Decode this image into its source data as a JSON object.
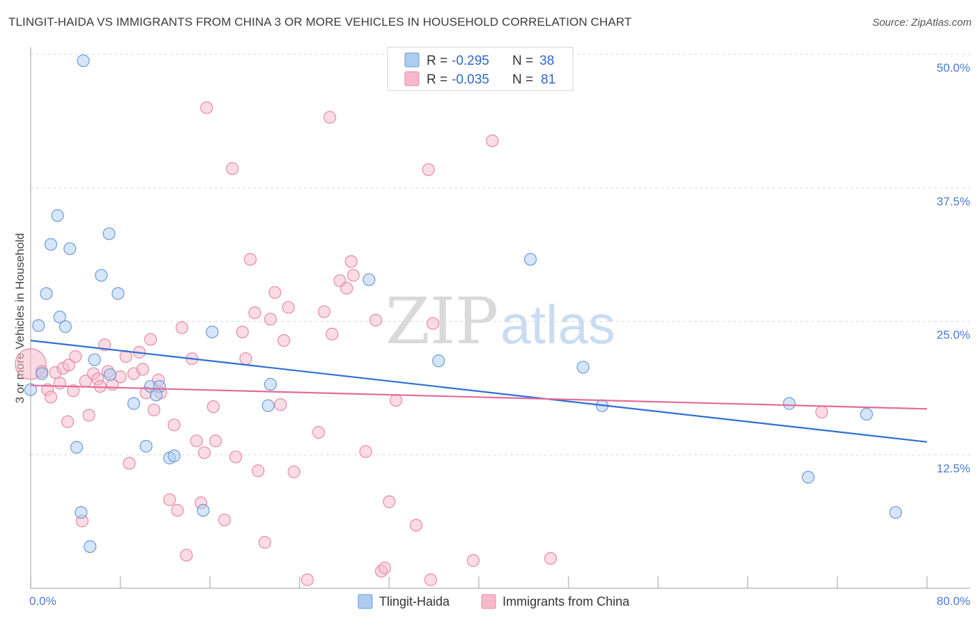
{
  "header": {
    "title": "TLINGIT-HAIDA VS IMMIGRANTS FROM CHINA 3 OR MORE VEHICLES IN HOUSEHOLD CORRELATION CHART",
    "source": "Source: ZipAtlas.com"
  },
  "watermark": {
    "part1": "ZIP",
    "part2": "atlas"
  },
  "legend": {
    "rows": [
      {
        "r_label": "R =",
        "r_value": "-0.295",
        "n_label": "N =",
        "n_value": "38",
        "color": "#aecbf0"
      },
      {
        "r_label": "R =",
        "r_value": "-0.035",
        "n_label": "N =",
        "n_value": "81",
        "color": "#f6b9cc"
      }
    ]
  },
  "colors": {
    "blue_fill": "#aecbf0",
    "blue_stroke": "#6a9bd8",
    "blue_line": "#2f6fd0",
    "pink_fill": "#f6b9cc",
    "pink_stroke": "#e889a8",
    "pink_line": "#e36b97",
    "grid": "#d8d8d8",
    "tick_text": "#4a7bd0"
  },
  "chart_data": {
    "type": "scatter",
    "title": "TLINGIT-HAIDA VS IMMIGRANTS FROM CHINA 3 OR MORE VEHICLES IN HOUSEHOLD CORRELATION CHART",
    "xlabel": "",
    "ylabel": "3 or more Vehicles in Household",
    "xlim": [
      0,
      80
    ],
    "ylim": [
      0,
      50
    ],
    "x_tick_labels": [
      "0.0%",
      "80.0%"
    ],
    "y_ticks": [
      12.5,
      25.0,
      37.5,
      50.0
    ],
    "y_tick_labels": [
      "12.5%",
      "25.0%",
      "37.5%",
      "50.0%"
    ],
    "grid": true,
    "series": [
      {
        "name": "Tlingit-Haida",
        "color": "#aecbf0",
        "trend": {
          "x": [
            0,
            80
          ],
          "y": [
            23.2,
            13.7
          ]
        },
        "points": [
          [
            4.7,
            49.4
          ],
          [
            2.4,
            34.9
          ],
          [
            7.0,
            33.2
          ],
          [
            1.8,
            32.2
          ],
          [
            3.5,
            31.8
          ],
          [
            6.3,
            29.3
          ],
          [
            1.4,
            27.6
          ],
          [
            7.8,
            27.6
          ],
          [
            30.2,
            28.9
          ],
          [
            2.6,
            25.4
          ],
          [
            0.7,
            24.6
          ],
          [
            3.1,
            24.5
          ],
          [
            16.2,
            24.0
          ],
          [
            5.7,
            21.4
          ],
          [
            7.1,
            20.0
          ],
          [
            1.0,
            20.1
          ],
          [
            0.0,
            18.6
          ],
          [
            10.7,
            18.9
          ],
          [
            11.5,
            18.9
          ],
          [
            11.2,
            18.1
          ],
          [
            21.4,
            19.1
          ],
          [
            9.2,
            17.3
          ],
          [
            21.2,
            17.1
          ],
          [
            36.4,
            21.3
          ],
          [
            44.6,
            30.8
          ],
          [
            49.3,
            20.7
          ],
          [
            51.0,
            17.1
          ],
          [
            67.7,
            17.3
          ],
          [
            74.6,
            16.3
          ],
          [
            4.1,
            13.2
          ],
          [
            10.3,
            13.3
          ],
          [
            12.4,
            12.2
          ],
          [
            12.8,
            12.4
          ],
          [
            69.4,
            10.4
          ],
          [
            4.5,
            7.1
          ],
          [
            15.4,
            7.3
          ],
          [
            5.3,
            3.9
          ],
          [
            77.2,
            7.1
          ]
        ]
      },
      {
        "name": "Immigrants from China",
        "color": "#f6b9cc",
        "trend": {
          "x": [
            0,
            80
          ],
          "y": [
            19.0,
            16.8
          ]
        },
        "points": [
          [
            0.0,
            21.0
          ],
          [
            1.0,
            20.3
          ],
          [
            1.5,
            18.6
          ],
          [
            1.8,
            17.9
          ],
          [
            2.2,
            20.2
          ],
          [
            2.6,
            19.2
          ],
          [
            2.9,
            20.6
          ],
          [
            3.3,
            15.6
          ],
          [
            3.4,
            20.9
          ],
          [
            3.8,
            18.5
          ],
          [
            4.0,
            21.7
          ],
          [
            4.6,
            6.3
          ],
          [
            4.9,
            19.4
          ],
          [
            5.2,
            16.2
          ],
          [
            5.6,
            20.1
          ],
          [
            6.0,
            19.6
          ],
          [
            6.2,
            18.9
          ],
          [
            6.6,
            22.8
          ],
          [
            6.9,
            20.3
          ],
          [
            7.3,
            19.1
          ],
          [
            8.0,
            19.8
          ],
          [
            8.5,
            21.7
          ],
          [
            8.8,
            11.7
          ],
          [
            9.2,
            20.1
          ],
          [
            9.7,
            22.1
          ],
          [
            10.0,
            20.5
          ],
          [
            10.3,
            18.3
          ],
          [
            10.7,
            23.3
          ],
          [
            11.0,
            16.7
          ],
          [
            11.4,
            19.5
          ],
          [
            11.6,
            18.3
          ],
          [
            12.4,
            8.3
          ],
          [
            12.8,
            15.3
          ],
          [
            13.1,
            7.3
          ],
          [
            13.5,
            24.4
          ],
          [
            13.9,
            3.1
          ],
          [
            14.4,
            21.5
          ],
          [
            14.8,
            13.8
          ],
          [
            15.2,
            8.0
          ],
          [
            15.5,
            12.7
          ],
          [
            15.7,
            45.0
          ],
          [
            16.3,
            17.0
          ],
          [
            16.5,
            13.8
          ],
          [
            17.3,
            6.4
          ],
          [
            18.0,
            39.3
          ],
          [
            18.3,
            12.3
          ],
          [
            18.9,
            24.0
          ],
          [
            19.2,
            21.5
          ],
          [
            19.6,
            30.8
          ],
          [
            20.0,
            25.8
          ],
          [
            20.3,
            11.0
          ],
          [
            20.9,
            4.3
          ],
          [
            21.4,
            25.2
          ],
          [
            21.8,
            27.7
          ],
          [
            22.3,
            17.2
          ],
          [
            22.6,
            23.2
          ],
          [
            23.0,
            26.3
          ],
          [
            23.5,
            10.9
          ],
          [
            24.7,
            0.8
          ],
          [
            25.7,
            14.6
          ],
          [
            26.2,
            25.9
          ],
          [
            26.7,
            44.1
          ],
          [
            26.9,
            23.8
          ],
          [
            27.6,
            28.8
          ],
          [
            28.2,
            28.1
          ],
          [
            28.6,
            30.6
          ],
          [
            28.8,
            29.3
          ],
          [
            29.9,
            12.8
          ],
          [
            30.8,
            25.1
          ],
          [
            31.3,
            1.6
          ],
          [
            31.6,
            1.9
          ],
          [
            32.0,
            8.1
          ],
          [
            32.6,
            17.6
          ],
          [
            34.4,
            5.9
          ],
          [
            35.5,
            39.2
          ],
          [
            35.7,
            0.8
          ],
          [
            35.9,
            24.8
          ],
          [
            39.5,
            2.6
          ],
          [
            41.2,
            41.9
          ],
          [
            46.4,
            2.8
          ],
          [
            70.6,
            16.5
          ]
        ]
      }
    ]
  }
}
